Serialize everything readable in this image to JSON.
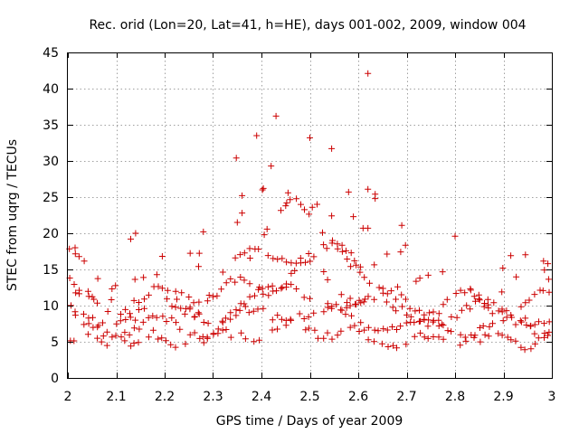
{
  "chart_data": {
    "type": "scatter",
    "title": "Rec. orid (Lon=20, Lat=41, h=HE), days 001-002, 2009, window 004",
    "xlabel": "GPS time / Days of year 2009",
    "ylabel": "STEC from uqrg / TECUs",
    "xlim": [
      2,
      3
    ],
    "ylim": [
      0,
      45
    ],
    "xticks": [
      2,
      2.1,
      2.2,
      2.3,
      2.4,
      2.5,
      2.6,
      2.7,
      2.8,
      2.9,
      3
    ],
    "xtick_labels": [
      "2",
      "2.1",
      "2.2",
      "2.3",
      "2.4",
      "2.5",
      "2.6",
      "2.7",
      "2.8",
      "2.9",
      "3"
    ],
    "yticks": [
      0,
      5,
      10,
      15,
      20,
      25,
      30,
      35,
      40,
      45
    ],
    "ytick_labels": [
      "0",
      "5",
      "10",
      "15",
      "20",
      "25",
      "30",
      "35",
      "40",
      "45"
    ],
    "grid": true,
    "marker": "plus",
    "color": "#cc0000",
    "outliers": [
      [
        2.348,
        30.4
      ],
      [
        2.36,
        25.2
      ],
      [
        2.39,
        33.5
      ],
      [
        2.402,
        26.0
      ],
      [
        2.404,
        26.2
      ],
      [
        2.42,
        29.3
      ],
      [
        2.43,
        36.2
      ],
      [
        2.45,
        23.8
      ],
      [
        2.455,
        25.6
      ],
      [
        2.5,
        33.2
      ],
      [
        2.505,
        23.6
      ],
      [
        2.515,
        24.0
      ],
      [
        2.545,
        31.7
      ],
      [
        2.545,
        22.4
      ],
      [
        2.58,
        25.7
      ],
      [
        2.59,
        22.3
      ],
      [
        2.62,
        42.1
      ],
      [
        2.62,
        26.1
      ],
      [
        2.635,
        25.4
      ],
      [
        2.635,
        24.8
      ],
      [
        2.61,
        20.7
      ],
      [
        2.62,
        20.7
      ],
      [
        2.69,
        21.1
      ],
      [
        2.8,
        19.6
      ],
      [
        2.015,
        18.0
      ],
      [
        2.13,
        19.2
      ],
      [
        2.14,
        20.0
      ],
      [
        2.28,
        20.2
      ],
      [
        2.27,
        15.4
      ],
      [
        2.35,
        21.5
      ],
      [
        2.36,
        22.8
      ]
    ],
    "band_seed": 7
  }
}
